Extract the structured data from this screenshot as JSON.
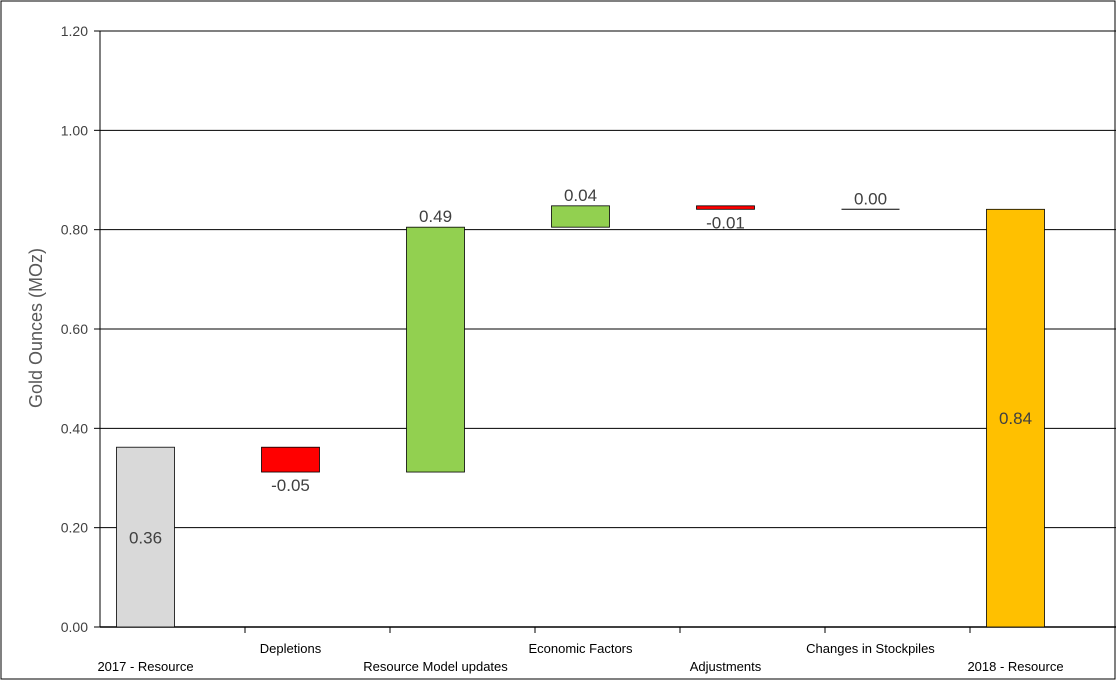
{
  "chart_data": {
    "type": "bar",
    "subtype": "waterfall",
    "title": "",
    "xlabel": "",
    "ylabel": "Gold Ounces (MOz)",
    "ylim": [
      0,
      1.2
    ],
    "yticks": [
      "0.00",
      "0.20",
      "0.40",
      "0.60",
      "0.80",
      "1.00",
      "1.20"
    ],
    "grid": true,
    "legend": "none",
    "categories": [
      "2017 - Resource",
      "Depletions",
      "Resource Model updates",
      "Economic Factors",
      "Adjustments",
      "Changes in Stockpiles",
      "2018 - Resource"
    ],
    "bars": [
      {
        "category": "2017 - Resource",
        "kind": "total",
        "start": 0,
        "end": 0.362,
        "label": "0.36",
        "color": "#d9d9d9"
      },
      {
        "category": "Depletions",
        "kind": "decrease",
        "start": 0.362,
        "end": 0.312,
        "label": "-0.05",
        "color": "#ff0000"
      },
      {
        "category": "Resource Model updates",
        "kind": "increase",
        "start": 0.312,
        "end": 0.805,
        "label": "0.49",
        "color": "#92d050"
      },
      {
        "category": "Economic Factors",
        "kind": "increase",
        "start": 0.805,
        "end": 0.848,
        "label": "0.04",
        "color": "#92d050"
      },
      {
        "category": "Adjustments",
        "kind": "decrease",
        "start": 0.848,
        "end": 0.841,
        "label": "-0.01",
        "color": "#ff0000"
      },
      {
        "category": "Changes in Stockpiles",
        "kind": "change",
        "start": 0.841,
        "end": 0.841,
        "label": "0.00",
        "color": "#000000"
      },
      {
        "category": "2018 - Resource",
        "kind": "total",
        "start": 0,
        "end": 0.841,
        "label": "0.84",
        "color": "#ffc000"
      }
    ]
  }
}
